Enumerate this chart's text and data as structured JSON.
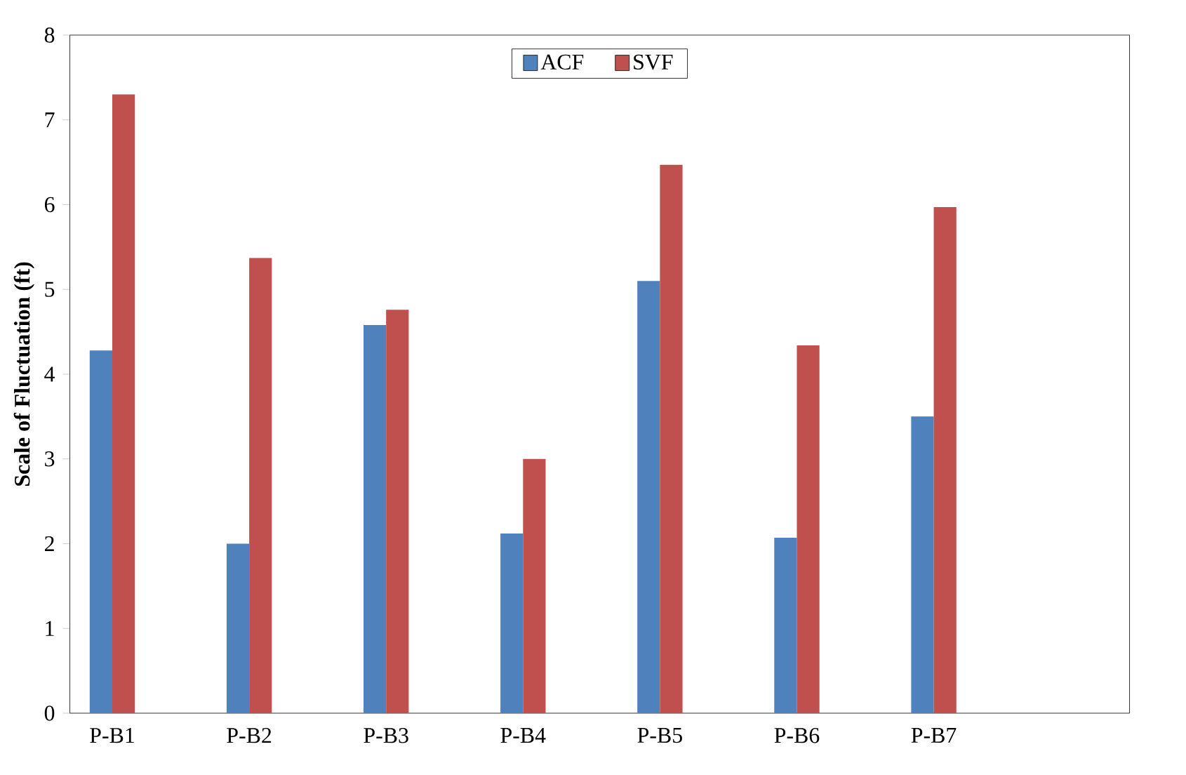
{
  "chart_data": {
    "type": "bar",
    "ylabel": "Scale of Fluctuation (ft)",
    "categories": [
      "P-B1",
      "P-B2",
      "P-B3",
      "P-B4",
      "P-B5",
      "P-B6",
      "P-B7"
    ],
    "series": [
      {
        "name": "ACF",
        "color": "#4f81bd",
        "values": [
          4.28,
          2.0,
          4.58,
          2.12,
          5.1,
          2.07,
          3.5
        ]
      },
      {
        "name": "SVF",
        "color": "#c0504d",
        "values": [
          7.3,
          5.37,
          4.76,
          3.0,
          6.47,
          4.34,
          5.97
        ]
      }
    ],
    "ylim": [
      0,
      8
    ],
    "yticks": [
      0,
      1,
      2,
      3,
      4,
      5,
      6,
      7,
      8
    ],
    "grid": false,
    "legend": "top"
  }
}
